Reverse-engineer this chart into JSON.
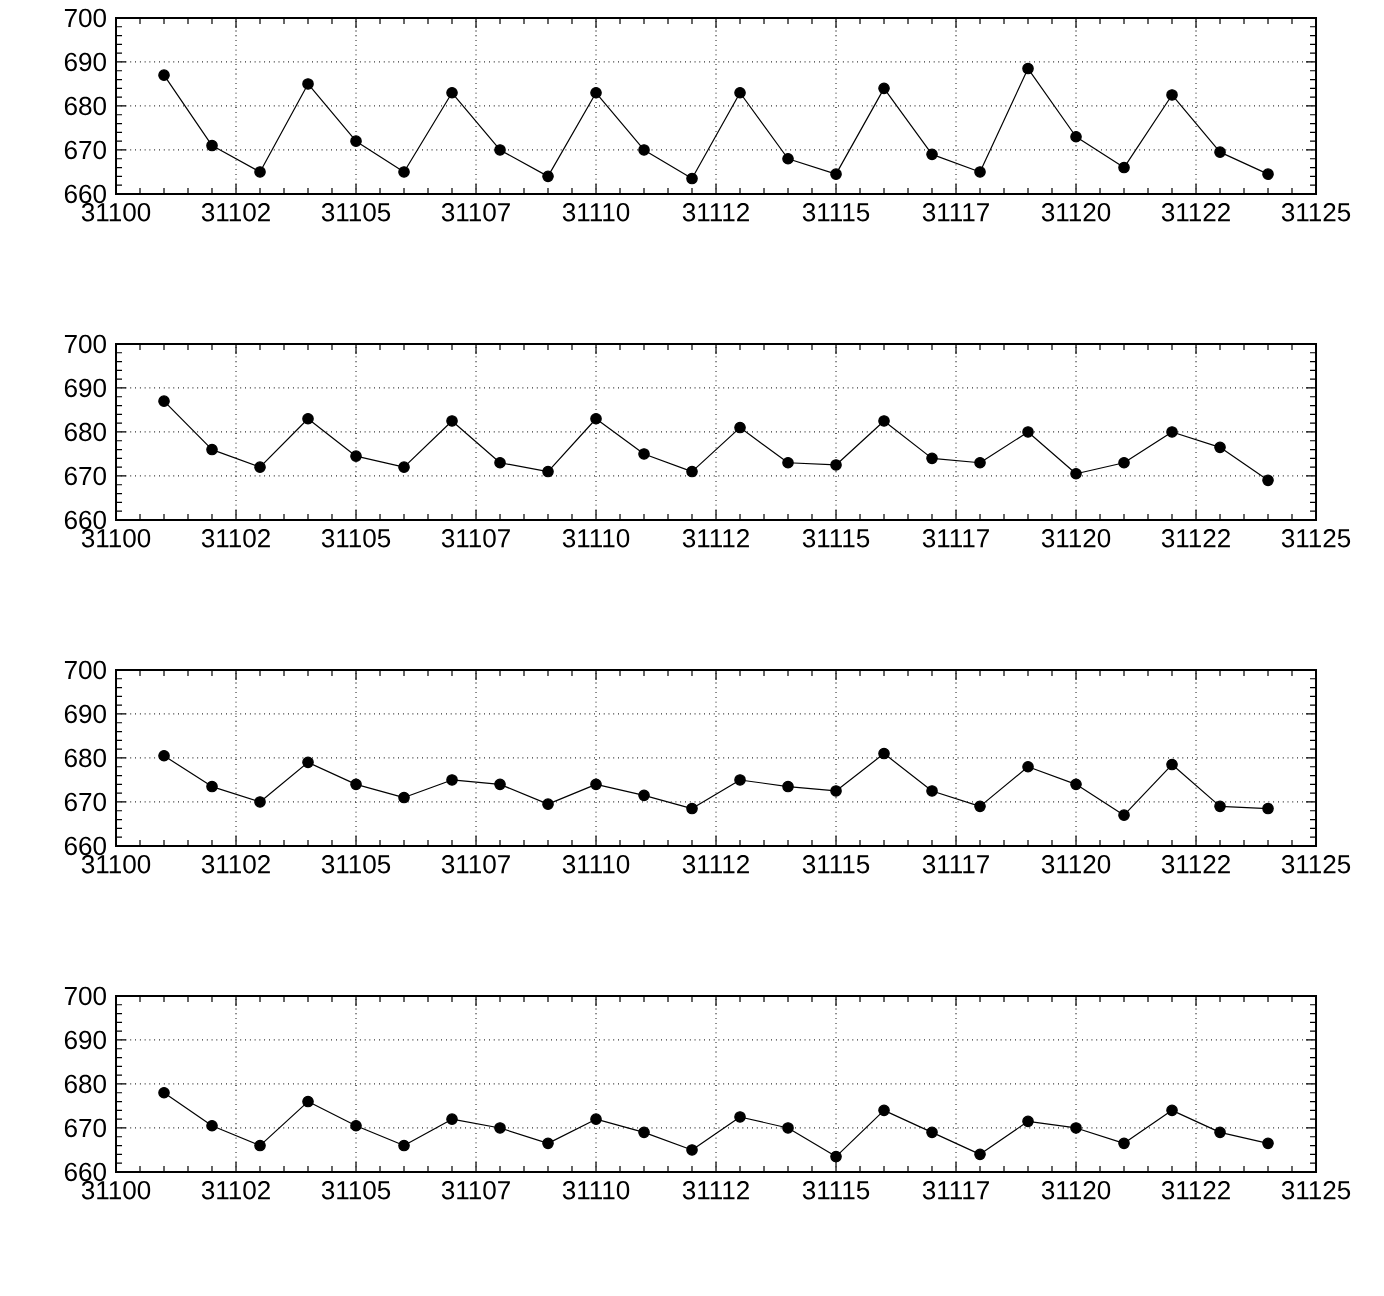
{
  "chart_data": [
    {
      "type": "line",
      "x": [
        31101,
        31102,
        31103,
        31104,
        31105,
        31106,
        31107,
        31108,
        31109,
        31110,
        31111,
        31112,
        31113,
        31114,
        31115,
        31116,
        31117,
        31118,
        31119,
        31120,
        31121,
        31122,
        31123,
        31124
      ],
      "values": [
        687,
        671,
        665,
        685,
        672,
        665,
        683,
        670,
        664,
        683,
        670,
        663.5,
        683,
        668,
        664.5,
        684,
        669,
        665,
        688.5,
        673,
        666,
        682.5,
        669.5,
        664.5
      ],
      "color": "#000000",
      "marker": "circle",
      "grid": true,
      "xlim": [
        31100,
        31125
      ],
      "ylim": [
        660,
        700
      ],
      "xticks": [
        31100,
        {
          "value": 31102.5,
          "label": "31102"
        },
        31105,
        {
          "value": 31107.5,
          "label": "31107"
        },
        31110,
        {
          "value": 31112.5,
          "label": "31112"
        },
        31115,
        {
          "value": 31117.5,
          "label": "31117"
        },
        31120,
        {
          "value": 31122.5,
          "label": "31122"
        },
        31125
      ],
      "yticks": [
        660,
        670,
        680,
        690,
        700
      ]
    },
    {
      "type": "line",
      "x": [
        31101,
        31102,
        31103,
        31104,
        31105,
        31106,
        31107,
        31108,
        31109,
        31110,
        31111,
        31112,
        31113,
        31114,
        31115,
        31116,
        31117,
        31118,
        31119,
        31120,
        31121,
        31122,
        31123,
        31124
      ],
      "values": [
        687,
        676,
        672,
        683,
        674.5,
        672,
        682.5,
        673,
        671,
        683,
        675,
        671,
        681,
        673,
        672.5,
        682.5,
        674,
        673,
        680,
        670.5,
        673,
        680,
        676.5,
        669
      ],
      "color": "#000000",
      "marker": "circle",
      "grid": true,
      "xlim": [
        31100,
        31125
      ],
      "ylim": [
        660,
        700
      ],
      "xticks": [
        31100,
        {
          "value": 31102.5,
          "label": "31102"
        },
        31105,
        {
          "value": 31107.5,
          "label": "31107"
        },
        31110,
        {
          "value": 31112.5,
          "label": "31112"
        },
        31115,
        {
          "value": 31117.5,
          "label": "31117"
        },
        31120,
        {
          "value": 31122.5,
          "label": "31122"
        },
        31125
      ],
      "yticks": [
        660,
        670,
        680,
        690,
        700
      ]
    },
    {
      "type": "line",
      "x": [
        31101,
        31102,
        31103,
        31104,
        31105,
        31106,
        31107,
        31108,
        31109,
        31110,
        31111,
        31112,
        31113,
        31114,
        31115,
        31116,
        31117,
        31118,
        31119,
        31120,
        31121,
        31122,
        31123,
        31124
      ],
      "values": [
        680.5,
        673.5,
        670,
        679,
        674,
        671,
        675,
        674,
        669.5,
        674,
        671.5,
        668.5,
        675,
        673.5,
        672.5,
        681,
        672.5,
        669,
        678,
        674,
        667,
        678.5,
        669,
        668.5
      ],
      "color": "#000000",
      "marker": "circle",
      "grid": true,
      "xlim": [
        31100,
        31125
      ],
      "ylim": [
        660,
        700
      ],
      "xticks": [
        31100,
        {
          "value": 31102.5,
          "label": "31102"
        },
        31105,
        {
          "value": 31107.5,
          "label": "31107"
        },
        31110,
        {
          "value": 31112.5,
          "label": "31112"
        },
        31115,
        {
          "value": 31117.5,
          "label": "31117"
        },
        31120,
        {
          "value": 31122.5,
          "label": "31122"
        },
        31125
      ],
      "yticks": [
        660,
        670,
        680,
        690,
        700
      ]
    },
    {
      "type": "line",
      "x": [
        31101,
        31102,
        31103,
        31104,
        31105,
        31106,
        31107,
        31108,
        31109,
        31110,
        31111,
        31112,
        31113,
        31114,
        31115,
        31116,
        31117,
        31118,
        31119,
        31120,
        31121,
        31122,
        31123,
        31124
      ],
      "values": [
        678,
        670.5,
        666,
        676,
        670.5,
        666,
        672,
        670,
        666.5,
        672,
        669,
        665,
        672.5,
        670,
        663.5,
        674,
        669,
        664,
        671.5,
        670,
        666.5,
        674,
        669,
        666.5
      ],
      "color": "#000000",
      "marker": "circle",
      "grid": true,
      "xlim": [
        31100,
        31125
      ],
      "ylim": [
        660,
        700
      ],
      "xticks": [
        31100,
        {
          "value": 31102.5,
          "label": "31102"
        },
        31105,
        {
          "value": 31107.5,
          "label": "31107"
        },
        31110,
        {
          "value": 31112.5,
          "label": "31112"
        },
        31115,
        {
          "value": 31117.5,
          "label": "31117"
        },
        31120,
        {
          "value": 31122.5,
          "label": "31122"
        },
        31125
      ],
      "yticks": [
        660,
        670,
        680,
        690,
        700
      ]
    }
  ]
}
